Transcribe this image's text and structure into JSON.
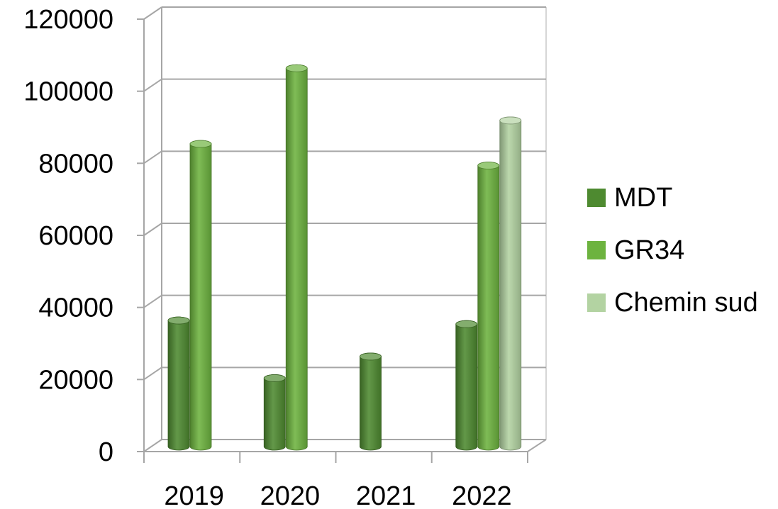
{
  "chart_data": {
    "type": "bar",
    "categories": [
      "2019",
      "2020",
      "2021",
      "2022"
    ],
    "series": [
      {
        "name": "MDT",
        "values": [
          35000,
          19000,
          25000,
          34000
        ],
        "color": "#4e8a30"
      },
      {
        "name": "GR34",
        "values": [
          84000,
          105000,
          null,
          78000
        ],
        "color": "#6db33f"
      },
      {
        "name": "Chemin sud",
        "values": [
          null,
          null,
          null,
          90500
        ],
        "color": "#b3d3a2"
      }
    ],
    "y_ticks": [
      "0",
      "20000",
      "40000",
      "60000",
      "80000",
      "100000",
      "120000"
    ],
    "ylim": [
      0,
      120000
    ],
    "grid": true,
    "legend_position": "right"
  }
}
